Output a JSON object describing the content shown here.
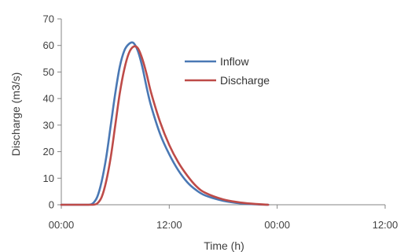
{
  "chart_data": {
    "type": "line",
    "title": "",
    "xlabel": "Time (h)",
    "ylabel": "Discharge (m3/s)",
    "x_unit": "hours",
    "xlim": [
      0,
      36
    ],
    "ylim": [
      0,
      70
    ],
    "x_ticks": [
      {
        "value": 0,
        "label": "00:00"
      },
      {
        "value": 12,
        "label": "12:00"
      },
      {
        "value": 24,
        "label": "00:00"
      },
      {
        "value": 36,
        "label": "12:00"
      }
    ],
    "y_ticks": [
      0,
      10,
      20,
      30,
      40,
      50,
      60,
      70
    ],
    "grid": false,
    "legend_position": "top-right inside",
    "series": [
      {
        "name": "Inflow",
        "color": "#4a78b4",
        "x": [
          0,
          2,
          3,
          3.5,
          4,
          4.5,
          5,
          5.5,
          6,
          6.5,
          7,
          7.5,
          8,
          8.5,
          9,
          9.5,
          10,
          11,
          12,
          13,
          14,
          15,
          16,
          18,
          20,
          22,
          23
        ],
        "y": [
          0,
          0,
          0,
          0.5,
          3,
          9,
          18,
          30,
          42,
          52,
          58,
          60.5,
          61,
          58,
          52,
          44,
          37,
          26.5,
          19,
          13,
          8.5,
          5.5,
          3.5,
          1.5,
          0.5,
          0.1,
          0
        ]
      },
      {
        "name": "Discharge",
        "color": "#be4b48",
        "x": [
          0,
          2,
          3,
          3.5,
          4,
          4.5,
          5,
          5.5,
          6,
          6.5,
          7,
          7.5,
          8,
          8.5,
          9,
          9.5,
          10,
          11,
          12,
          13,
          14,
          15,
          16,
          18,
          20,
          22,
          23
        ],
        "y": [
          0,
          0,
          0,
          0,
          0.5,
          3,
          9,
          18,
          30,
          42,
          51,
          57,
          59.5,
          59,
          55,
          49,
          42,
          31,
          22.5,
          16,
          11,
          7,
          4.5,
          2,
          0.8,
          0.2,
          0
        ]
      }
    ]
  }
}
